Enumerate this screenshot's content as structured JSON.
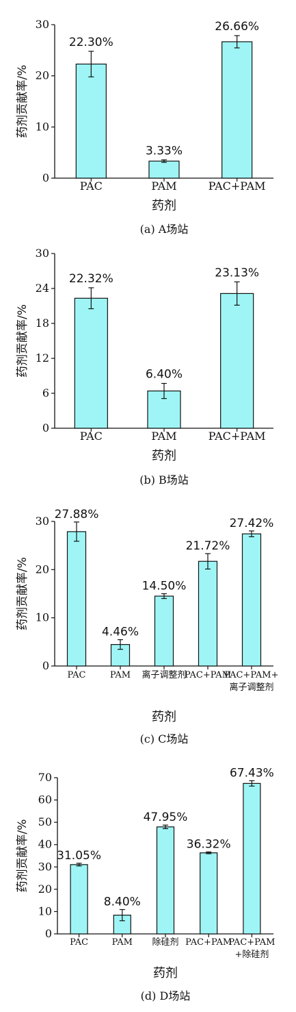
{
  "colors": {
    "bar_fill": "#9ff5f5",
    "bar_stroke": "#111111",
    "axis": "#111111"
  },
  "chart_data": [
    {
      "type": "bar",
      "caption": "(a) A场站",
      "xlabel": "药剂",
      "ylabel": "药剂贡献率/%",
      "ylim": [
        0,
        30
      ],
      "yticks": [
        0,
        10,
        20,
        30
      ],
      "grid": false,
      "categories": [
        [
          "PAC"
        ],
        [
          "PAM"
        ],
        [
          "PAC+PAM"
        ]
      ],
      "values": [
        22.3,
        3.33,
        26.66
      ],
      "errors": [
        2.5,
        0.25,
        1.2
      ],
      "value_labels": [
        "22.30%",
        "3.33%",
        "26.66%"
      ]
    },
    {
      "type": "bar",
      "caption": "(b) B场站",
      "xlabel": "药剂",
      "ylabel": "药剂贡献率/%",
      "ylim": [
        0,
        30
      ],
      "yticks": [
        0,
        6,
        12,
        18,
        24,
        30
      ],
      "grid": false,
      "categories": [
        [
          "PAC"
        ],
        [
          "PAM"
        ],
        [
          "PAC+PAM"
        ]
      ],
      "values": [
        22.32,
        6.4,
        23.13
      ],
      "errors": [
        1.8,
        1.3,
        2.0
      ],
      "value_labels": [
        "22.32%",
        "6.40%",
        "23.13%"
      ]
    },
    {
      "type": "bar",
      "caption": "(c) C场站",
      "xlabel": "药剂",
      "ylabel": "药剂贡献率/%",
      "ylim": [
        0,
        30
      ],
      "yticks": [
        0,
        10,
        20,
        30
      ],
      "grid": false,
      "categories": [
        [
          "PAC"
        ],
        [
          "PAM"
        ],
        [
          "离子调整剂"
        ],
        [
          "PAC+PAM"
        ],
        [
          "PAC+PAM+",
          "离子调整剂"
        ]
      ],
      "values": [
        27.88,
        4.46,
        14.5,
        21.72,
        27.42
      ],
      "errors": [
        2.0,
        1.0,
        0.5,
        1.6,
        0.6
      ],
      "value_labels": [
        "27.88%",
        "4.46%",
        "14.50%",
        "21.72%",
        "27.42%"
      ]
    },
    {
      "type": "bar",
      "caption": "(d) D场站",
      "xlabel": "药剂",
      "ylabel": "药剂贡献率/%",
      "ylim": [
        0,
        70
      ],
      "yticks": [
        0,
        10,
        20,
        30,
        40,
        50,
        60,
        70
      ],
      "grid": false,
      "categories": [
        [
          "PAC"
        ],
        [
          "PAM"
        ],
        [
          "除硅剂"
        ],
        [
          "PAC+PAM"
        ],
        [
          "PAC+PAM",
          "+除硅剂"
        ]
      ],
      "values": [
        31.05,
        8.4,
        47.95,
        36.32,
        67.43
      ],
      "errors": [
        0.6,
        2.5,
        0.8,
        0.4,
        1.2
      ],
      "value_labels": [
        "31.05%",
        "8.40%",
        "47.95%",
        "36.32%",
        "67.43%"
      ]
    }
  ]
}
